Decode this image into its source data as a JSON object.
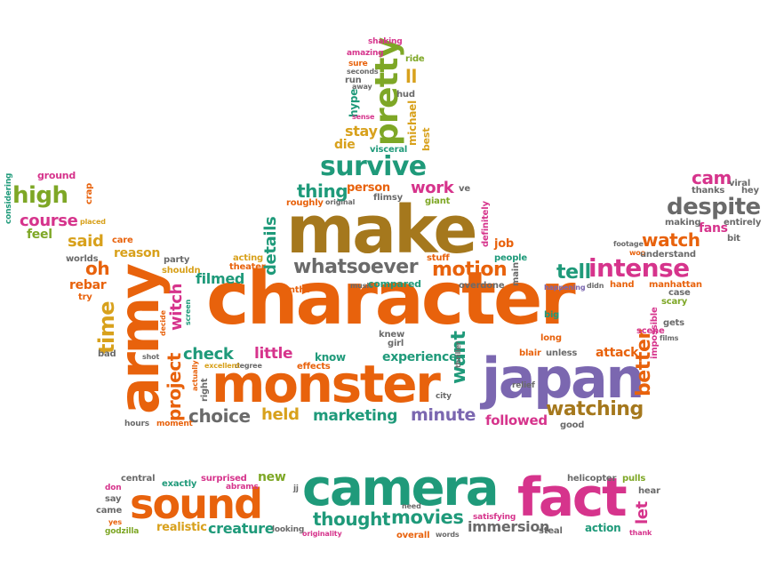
{
  "colors": {
    "orange": "#e8620c",
    "brown": "#a5781d",
    "purple": "#7b67b0",
    "teal": "#1f9a7a",
    "green": "#7ea726",
    "magenta": "#d6348c",
    "gray": "#6a6a6a",
    "gold": "#d8a11c"
  },
  "words": [
    {
      "text": "character"
    },
    {
      "text": "make"
    },
    {
      "text": "monster"
    },
    {
      "text": "japan"
    },
    {
      "text": "army"
    },
    {
      "text": "camera"
    },
    {
      "text": "sound"
    },
    {
      "text": "fact"
    },
    {
      "text": "survive"
    },
    {
      "text": "pretty"
    },
    {
      "text": "intense"
    },
    {
      "text": "despite"
    },
    {
      "text": "whatsoever"
    },
    {
      "text": "motion"
    },
    {
      "text": "watching"
    },
    {
      "text": "project"
    },
    {
      "text": "choice"
    },
    {
      "text": "held"
    },
    {
      "text": "marketing"
    },
    {
      "text": "minute"
    },
    {
      "text": "followed"
    },
    {
      "text": "better"
    },
    {
      "text": "high"
    },
    {
      "text": "course"
    },
    {
      "text": "watch"
    },
    {
      "text": "cam"
    },
    {
      "text": "work"
    },
    {
      "text": "thing"
    },
    {
      "text": "check"
    },
    {
      "text": "little"
    },
    {
      "text": "time"
    },
    {
      "text": "witch"
    },
    {
      "text": "details"
    },
    {
      "text": "thought"
    },
    {
      "text": "movies"
    },
    {
      "text": "immersion"
    },
    {
      "text": "creature"
    },
    {
      "text": "realistic"
    },
    {
      "text": "tell"
    },
    {
      "text": "said"
    },
    {
      "text": "oh"
    },
    {
      "text": "reason"
    },
    {
      "text": "filmed"
    },
    {
      "text": "want"
    },
    {
      "text": "attack"
    },
    {
      "text": "experience"
    },
    {
      "text": "stay"
    },
    {
      "text": "ll"
    },
    {
      "text": "let"
    },
    {
      "text": "new"
    },
    {
      "text": "action"
    },
    {
      "text": "feel"
    },
    {
      "text": "rebar"
    },
    {
      "text": "person"
    },
    {
      "text": "know"
    },
    {
      "text": "fans"
    },
    {
      "text": "job"
    },
    {
      "text": "die"
    },
    {
      "text": "ride"
    },
    {
      "text": "hud"
    },
    {
      "text": "hype"
    },
    {
      "text": "michael"
    },
    {
      "text": "visceral"
    },
    {
      "text": "best"
    },
    {
      "text": "flimsy"
    },
    {
      "text": "giant"
    },
    {
      "text": "ve"
    },
    {
      "text": "roughly"
    },
    {
      "text": "original"
    },
    {
      "text": "shaking"
    },
    {
      "text": "amazing"
    },
    {
      "text": "sure"
    },
    {
      "text": "seconds"
    },
    {
      "text": "run"
    },
    {
      "text": "away"
    },
    {
      "text": "sense"
    },
    {
      "text": "ground"
    },
    {
      "text": "considering"
    },
    {
      "text": "crap"
    },
    {
      "text": "placed"
    },
    {
      "text": "care"
    },
    {
      "text": "worlds"
    },
    {
      "text": "party"
    },
    {
      "text": "shouldn"
    },
    {
      "text": "try"
    },
    {
      "text": "acting"
    },
    {
      "text": "theater"
    },
    {
      "text": "months"
    },
    {
      "text": "stuff"
    },
    {
      "text": "definitely"
    },
    {
      "text": "people"
    },
    {
      "text": "music"
    },
    {
      "text": "compared"
    },
    {
      "text": "overdone"
    },
    {
      "text": "main"
    },
    {
      "text": "happening"
    },
    {
      "text": "didn"
    },
    {
      "text": "hand"
    },
    {
      "text": "footage"
    },
    {
      "text": "woo"
    },
    {
      "text": "understand"
    },
    {
      "text": "manhattan"
    },
    {
      "text": "case"
    },
    {
      "text": "scary"
    },
    {
      "text": "viral"
    },
    {
      "text": "thanks"
    },
    {
      "text": "hey"
    },
    {
      "text": "making"
    },
    {
      "text": "entirely"
    },
    {
      "text": "bit"
    },
    {
      "text": "big"
    },
    {
      "text": "gets"
    },
    {
      "text": "scene"
    },
    {
      "text": "films"
    },
    {
      "text": "impossible"
    },
    {
      "text": "long"
    },
    {
      "text": "blair"
    },
    {
      "text": "unless"
    },
    {
      "text": "knew"
    },
    {
      "text": "girl"
    },
    {
      "text": "effects"
    },
    {
      "text": "degree"
    },
    {
      "text": "excellent"
    },
    {
      "text": "actually"
    },
    {
      "text": "right"
    },
    {
      "text": "shot"
    },
    {
      "text": "bad"
    },
    {
      "text": "decide"
    },
    {
      "text": "screen"
    },
    {
      "text": "city"
    },
    {
      "text": "thriller"
    },
    {
      "text": "relief"
    },
    {
      "text": "good"
    },
    {
      "text": "hours"
    },
    {
      "text": "moment"
    },
    {
      "text": "central"
    },
    {
      "text": "exactly"
    },
    {
      "text": "surprised"
    },
    {
      "text": "abrams"
    },
    {
      "text": "jj"
    },
    {
      "text": "don"
    },
    {
      "text": "say"
    },
    {
      "text": "came"
    },
    {
      "text": "yes"
    },
    {
      "text": "godzilla"
    },
    {
      "text": "looking"
    },
    {
      "text": "originality"
    },
    {
      "text": "need"
    },
    {
      "text": "overall"
    },
    {
      "text": "satisfying"
    },
    {
      "text": "words"
    },
    {
      "text": "steal"
    },
    {
      "text": "helicopter"
    },
    {
      "text": "pulls"
    },
    {
      "text": "hear"
    },
    {
      "text": "thank"
    }
  ]
}
